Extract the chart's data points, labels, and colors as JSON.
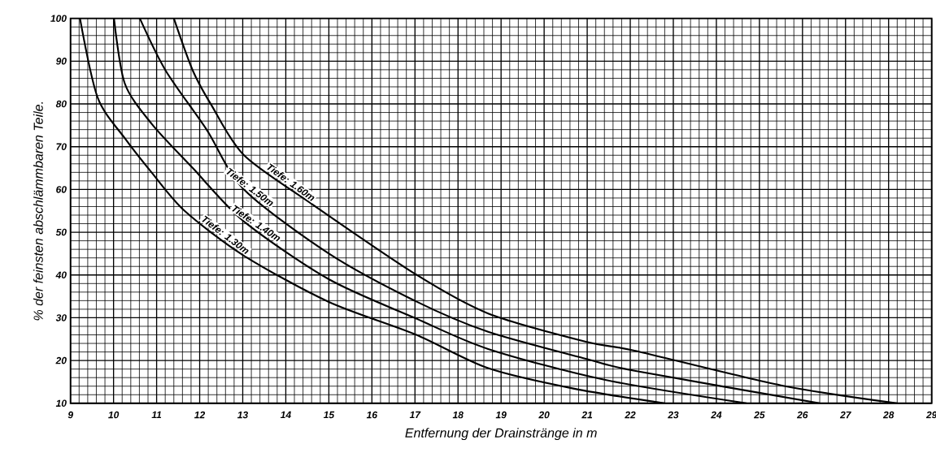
{
  "chart_data": {
    "type": "line",
    "xlabel": "Entfernung der Drainstränge in m",
    "ylabel": "% der feinsten abschlämmbaren Teile.",
    "xlim": [
      9,
      29
    ],
    "ylim": [
      10,
      100
    ],
    "xticks": [
      9,
      10,
      11,
      12,
      13,
      14,
      15,
      16,
      17,
      18,
      19,
      20,
      21,
      22,
      23,
      24,
      25,
      26,
      27,
      28,
      29
    ],
    "yticks": [
      10,
      20,
      30,
      40,
      50,
      60,
      70,
      80,
      90,
      100
    ],
    "grid": true,
    "marker": "none",
    "line_style": "solid",
    "series": [
      {
        "name": "Tiefe: 1.30m",
        "color": "#000000",
        "x": [
          9.22,
          9.63,
          10.26,
          10.89,
          11.65,
          13.03,
          15,
          17.01,
          18.7,
          20.7,
          22.8
        ],
        "values": [
          100,
          81.5,
          72,
          63.9,
          55,
          44.5,
          33.7,
          26.1,
          18.2,
          13.4,
          10
        ]
      },
      {
        "name": "Tiefe: 1.40m",
        "color": "#000000",
        "x": [
          10.01,
          10.26,
          10.89,
          11.84,
          13.03,
          15,
          17.01,
          18.7,
          21.4,
          24.7
        ],
        "values": [
          100,
          84.8,
          75.3,
          65,
          52.5,
          39,
          29.9,
          22.7,
          15.5,
          10
        ]
      },
      {
        "name": "Tiefe: 1.50m",
        "color": "#000000",
        "x": [
          10.61,
          11.21,
          12.16,
          13.03,
          15,
          17.01,
          18.7,
          20.97,
          22.1,
          26.4
        ],
        "values": [
          100,
          87.8,
          74,
          60,
          45,
          33.9,
          26.7,
          20.4,
          17.6,
          10
        ]
      },
      {
        "name": "Tiefe: 1.60m",
        "color": "#000000",
        "x": [
          11.4,
          11.84,
          12.28,
          13.03,
          14.56,
          17.01,
          18.7,
          20.97,
          22.1,
          25.5,
          28.2
        ],
        "values": [
          100,
          87.8,
          79.6,
          68,
          56.9,
          40.2,
          31,
          24.4,
          22.3,
          14.2,
          10
        ]
      }
    ]
  }
}
